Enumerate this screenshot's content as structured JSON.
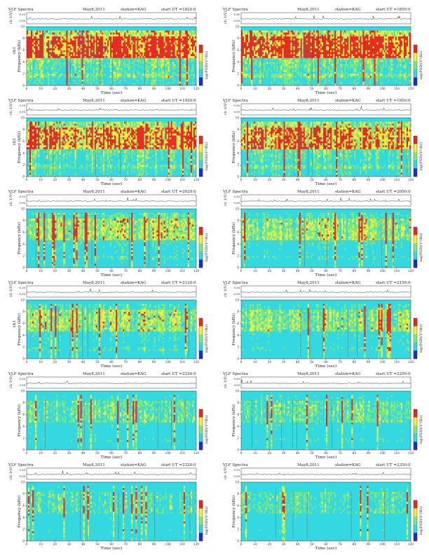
{
  "chart_data": {
    "type": "heatmap",
    "xlabel": "Time (sec)",
    "ylabel": "Frequency (kHz)",
    "time_ticks": [
      0,
      10,
      20,
      30,
      40,
      50,
      60,
      70,
      80,
      90,
      100,
      110,
      120
    ],
    "freq_ticks": [
      0,
      2,
      4,
      6,
      8,
      10
    ],
    "amp_ticks": [
      "0.00",
      "0.30"
    ],
    "amp_label": "ch 1(V)",
    "colorbar_label": "log(PSD)(V²/Hz)",
    "colors": {
      "low": "#1a2ccf",
      "cyan": "#34d8e0",
      "green": "#7fe87a",
      "yellow": "#f1ef3f",
      "red": "#e8281f"
    },
    "panels": [
      {
        "header": "VLF Spectra",
        "date": "May8,2011",
        "station": "station=KAG",
        "start": "start UT =1820:0",
        "ch_label": "ch1",
        "intensity": 0.85
      },
      {
        "header": "VLF Spectra",
        "date": "May8,2011",
        "station": "station=KAG",
        "start": "start UT =1850:0",
        "ch_label": "",
        "intensity": 0.85
      },
      {
        "header": "VLF Spectra",
        "date": "May8,2011",
        "station": "station=KAG",
        "start": "start UT =1920:0",
        "ch_label": "ch1",
        "intensity": 0.8
      },
      {
        "header": "VLF Spectra",
        "date": "May8,2011",
        "station": "station=KAG",
        "start": "start UT =1950:0",
        "ch_label": "",
        "intensity": 0.75
      },
      {
        "header": "VLF Spectra",
        "date": "May8,2011",
        "station": "station=KAG",
        "start": "start UT =2020:0",
        "ch_label": "",
        "intensity": 0.55
      },
      {
        "header": "VLF Spectra",
        "date": "May8,2011",
        "station": "station=KAG",
        "start": "start UT =2050:0",
        "ch_label": "",
        "intensity": 0.5
      },
      {
        "header": "VLF Spectra",
        "date": "May8,2011",
        "station": "station=KAG",
        "start": "start UT =2120:0",
        "ch_label": "ch1",
        "intensity": 0.5
      },
      {
        "header": "VLF Spectra",
        "date": "May8,2011",
        "station": "station=KAG",
        "start": "start UT =2150:0",
        "ch_label": "",
        "intensity": 0.45
      },
      {
        "header": "VLF Spectra",
        "date": "May8,2011",
        "station": "station=KAG",
        "start": "start UT =2220:0",
        "ch_label": "",
        "intensity": 0.35
      },
      {
        "header": "VLF Spectra",
        "date": "May8,2011",
        "station": "station=KAG",
        "start": "start UT =2250:0",
        "ch_label": "",
        "intensity": 0.35
      },
      {
        "header": "VLF Spectra",
        "date": "May8,2011",
        "station": "station=KAG",
        "start": "start UT =2320:0",
        "ch_label": "",
        "intensity": 0.3
      },
      {
        "header": "VLF Spectra",
        "date": "May8,2011",
        "station": "station=KAG",
        "start": "start UT =2350:0",
        "ch_label": "",
        "intensity": 0.3
      }
    ]
  }
}
